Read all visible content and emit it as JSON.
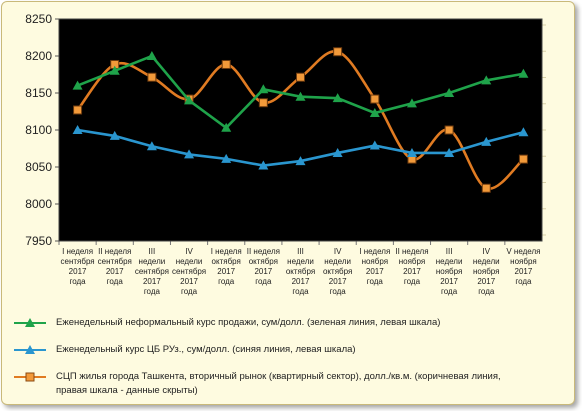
{
  "chart_data": {
    "type": "line",
    "categories": [
      [
        "I неделя",
        "сентября",
        "2017",
        "года"
      ],
      [
        "II неделя",
        "сентября",
        "2017",
        "года"
      ],
      [
        "III",
        "недели",
        "сентября",
        "2017",
        "года"
      ],
      [
        "IV",
        "недели",
        "сентября",
        "2017",
        "года"
      ],
      [
        "I неделя",
        "октября",
        "2017",
        "года"
      ],
      [
        "II неделя",
        "октября",
        "2017",
        "года"
      ],
      [
        "III",
        "недели",
        "октября",
        "2017",
        "года"
      ],
      [
        "IV",
        "недели",
        "октября",
        "2017",
        "года"
      ],
      [
        "I неделя",
        "ноября",
        "2017",
        "года"
      ],
      [
        "II неделя",
        "ноября",
        "2017",
        "года"
      ],
      [
        "III",
        "недели",
        "ноября",
        "2017",
        "года"
      ],
      [
        "IV",
        "недели",
        "ноября",
        "2017",
        "года"
      ],
      [
        "V неделя",
        "ноября",
        "2017",
        "года"
      ]
    ],
    "y_left": {
      "min": 7950,
      "max": 8250,
      "ticks": [
        7950,
        8000,
        8050,
        8100,
        8150,
        8200,
        8250
      ]
    },
    "y_right_hidden": {
      "ticks": 9
    },
    "grid": false,
    "series": [
      {
        "name": "Еженедельный неформальный курс продажи, сум/долл. (зеленая линия, левая шкала)",
        "axis": "left",
        "color": "#1fa34a",
        "marker": "triangle",
        "values": [
          8160,
          8180,
          8200,
          8140,
          8103,
          8155,
          8145,
          8143,
          8123,
          8136,
          8150,
          8167,
          8176
        ]
      },
      {
        "name": "Еженедельный курс ЦБ РУз., сум/долл. (синяя линия, левая шкала)",
        "axis": "left",
        "color": "#2a96cf",
        "marker": "triangle",
        "values": [
          8100,
          8092,
          8078,
          8067,
          8061,
          8052,
          8058,
          8069,
          8079,
          8069,
          8069,
          8084,
          8097
        ]
      },
      {
        "name": "СЦП жилья города Ташкента, вторичный рынок (квартирный сектор), долл./кв.м. (коричневая линия, правая шкала - данные скрыты)",
        "axis": "right",
        "color": "#e07b22",
        "marker": "square",
        "values_relative": [
          0.61,
          0.86,
          0.79,
          0.67,
          0.86,
          0.65,
          0.79,
          0.93,
          0.67,
          0.34,
          0.5,
          0.18,
          0.34
        ]
      }
    ]
  },
  "colors": {
    "frame_bg": "#fefbe0",
    "plot_bg": "#000000",
    "tick_text": "#222222"
  }
}
